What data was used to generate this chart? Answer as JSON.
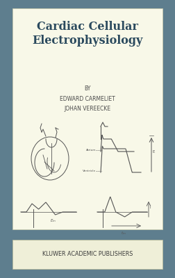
{
  "bg_color": "#5e7e8e",
  "cover_bg": "#f8f8e8",
  "title": "Cardiac Cellular\nElectrophysiology",
  "title_color": "#2b4a5e",
  "title_fontsize": 11.5,
  "by_text": "BY\nEDWARD CARMELIET\nJOHAN VEREECKE",
  "by_color": "#4a4a4a",
  "by_fontsize": 5.5,
  "publisher": "KLUWER ACADEMIC PUBLISHERS",
  "publisher_color": "#3a3a3a",
  "publisher_fontsize": 5.8,
  "line_color": "#555555"
}
